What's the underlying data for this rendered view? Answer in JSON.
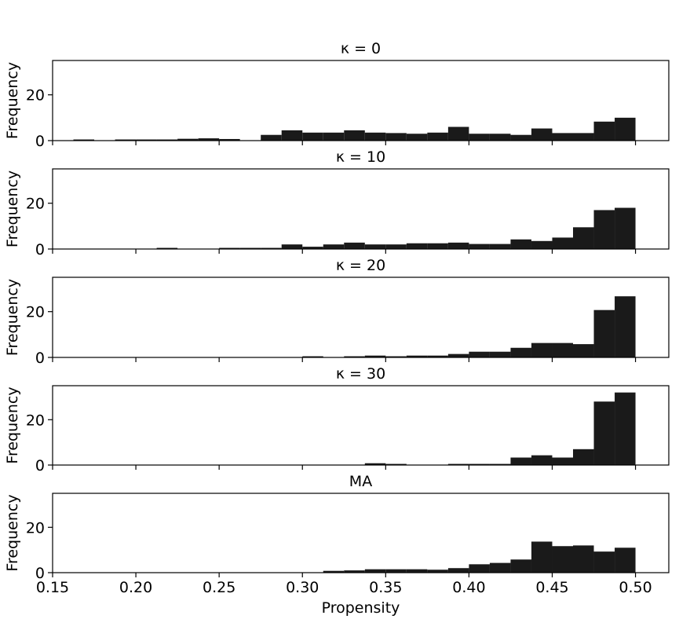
{
  "chart_data": {
    "type": "bar",
    "shared_x": true,
    "xlabel": "Propensity",
    "ylabel": "Frequency",
    "xlim": [
      0.15,
      0.52
    ],
    "ylim": [
      0,
      35
    ],
    "x_ticks": [
      "0.15",
      "0.20",
      "0.25",
      "0.30",
      "0.35",
      "0.40",
      "0.45",
      "0.50"
    ],
    "x_tick_values": [
      0.15,
      0.2,
      0.25,
      0.3,
      0.35,
      0.4,
      0.45,
      0.5
    ],
    "y_ticks": [
      "0",
      "20"
    ],
    "y_tick_values": [
      0,
      20
    ],
    "bin_width": 0.0125,
    "panels": [
      {
        "title": "κ = 0",
        "bin_starts": [
          0.1625,
          0.175,
          0.1875,
          0.2,
          0.2125,
          0.225,
          0.2375,
          0.25,
          0.2625,
          0.275,
          0.2875,
          0.3,
          0.3125,
          0.325,
          0.3375,
          0.35,
          0.3625,
          0.375,
          0.3875,
          0.4,
          0.4125,
          0.425,
          0.4375,
          0.45,
          0.4625,
          0.475,
          0.4875
        ],
        "values": [
          0.5,
          0,
          0.5,
          0.5,
          0.5,
          0.8,
          1,
          0.7,
          0,
          2.5,
          4.5,
          3.5,
          3.5,
          4.5,
          3.5,
          3.3,
          3,
          3.5,
          6,
          3,
          3,
          2.5,
          5.3,
          3.3,
          3.3,
          8.3,
          10
        ]
      },
      {
        "title": "κ = 10",
        "bin_starts": [
          0.2125,
          0.25,
          0.2625,
          0.275,
          0.2875,
          0.3,
          0.3125,
          0.325,
          0.3375,
          0.35,
          0.3625,
          0.375,
          0.3875,
          0.4,
          0.4125,
          0.425,
          0.4375,
          0.45,
          0.4625,
          0.475,
          0.4875
        ],
        "values": [
          0.5,
          0.5,
          0.5,
          0.5,
          2,
          1,
          2,
          2.8,
          2,
          2,
          2.5,
          2.5,
          2.8,
          2.2,
          2.2,
          4.2,
          3.5,
          5,
          9.5,
          17,
          18
        ]
      },
      {
        "title": "κ = 20",
        "bin_starts": [
          0.3,
          0.325,
          0.3375,
          0.35,
          0.3625,
          0.375,
          0.3875,
          0.4,
          0.4125,
          0.425,
          0.4375,
          0.45,
          0.4625,
          0.475,
          0.4875
        ],
        "values": [
          0.5,
          0.5,
          0.8,
          0.5,
          0.8,
          0.8,
          1.5,
          2.5,
          2.5,
          4.2,
          6.3,
          6.3,
          5.8,
          20.7,
          26.7
        ]
      },
      {
        "title": "κ = 30",
        "bin_starts": [
          0.3375,
          0.35,
          0.3875,
          0.4,
          0.4125,
          0.425,
          0.4375,
          0.45,
          0.4625,
          0.475,
          0.4875
        ],
        "values": [
          0.8,
          0.5,
          0.5,
          0.5,
          0.5,
          3.3,
          4.3,
          3.3,
          7,
          28,
          32
        ]
      },
      {
        "title": "MA",
        "bin_starts": [
          0.3125,
          0.325,
          0.3375,
          0.35,
          0.3625,
          0.375,
          0.3875,
          0.4,
          0.4125,
          0.425,
          0.4375,
          0.45,
          0.4625,
          0.475,
          0.4875
        ],
        "values": [
          0.8,
          1,
          1.5,
          1.5,
          1.5,
          1.3,
          2,
          3.7,
          4.3,
          5.8,
          13.7,
          11.7,
          12,
          9.3,
          11
        ]
      }
    ]
  }
}
